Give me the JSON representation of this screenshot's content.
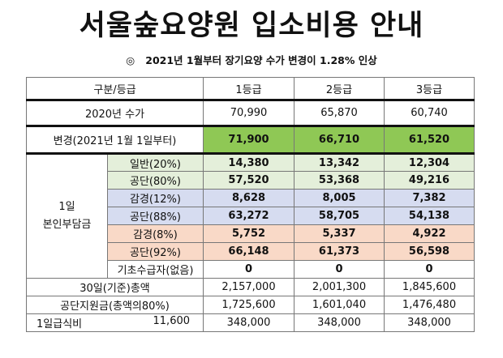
{
  "title": "서울숲요양원 입소비용 안내",
  "subtitle": {
    "bullet": "◎",
    "text": "2021년 1월부터  장기요양 수가 변경이 1.28% 인상"
  },
  "header": {
    "category": "구분/등급",
    "grades": [
      "1등급",
      "2등급",
      "3등급"
    ]
  },
  "row_2020": {
    "label": "2020년 수가",
    "values": [
      "70,990",
      "65,870",
      "60,740"
    ]
  },
  "row_change": {
    "label": "변경(2021년 1월 1일부터)",
    "values": [
      "71,900",
      "66,710",
      "61,520"
    ]
  },
  "group_label": {
    "line1": "1일",
    "line2": "본인부담금"
  },
  "sub_rows": [
    {
      "label": "일반(20%)",
      "values": [
        "14,380",
        "13,342",
        "12,304"
      ]
    },
    {
      "label": "공단(80%)",
      "values": [
        "57,520",
        "53,368",
        "49,216"
      ]
    },
    {
      "label": "감경(12%)",
      "values": [
        "8,628",
        "8,005",
        "7,382"
      ]
    },
    {
      "label": "공단(88%)",
      "values": [
        "63,272",
        "58,705",
        "54,138"
      ]
    },
    {
      "label": "감경(8%)",
      "values": [
        "5,752",
        "5,337",
        "4,922"
      ]
    },
    {
      "label": "공단(92%)",
      "values": [
        "66,148",
        "61,373",
        "56,598"
      ]
    },
    {
      "label": "기초수급자(없음)",
      "values": [
        "0",
        "0",
        "0"
      ]
    }
  ],
  "row_total": {
    "label": "30일(기준)총액",
    "values": [
      "2,157,000",
      "2,001,300",
      "1,845,600"
    ]
  },
  "row_support": {
    "label": "공단지원금(총액의80%)",
    "values": [
      "1,725,600",
      "1,601,040",
      "1,476,480"
    ]
  },
  "row_meal": {
    "label": "1일급식비",
    "unit_price": "11,600",
    "values": [
      "348,000",
      "348,000",
      "348,000"
    ]
  },
  "colors": {
    "change_row": "#8fc855",
    "light_green": "#e4efda",
    "light_blue": "#d6dcf0",
    "light_peach": "#f9d9c7"
  }
}
